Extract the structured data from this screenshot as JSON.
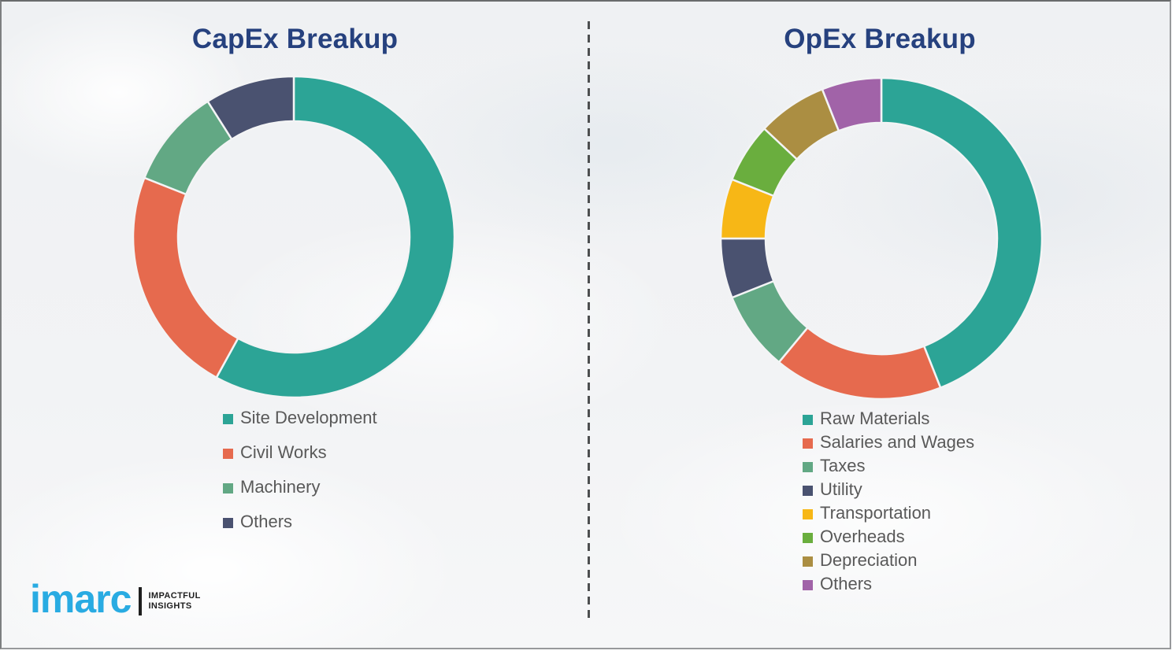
{
  "header": {
    "left_title": "CapEx Breakup",
    "right_title": "OpEx Breakup"
  },
  "chart_data": [
    {
      "type": "pie",
      "variant": "donut",
      "title": "CapEx Breakup",
      "legend_position": "bottom-left",
      "values_are": "percent (estimated from arc angles; no numeric labels shown)",
      "segments": [
        {
          "label": "Site Development",
          "value": 58,
          "color": "#2ca496"
        },
        {
          "label": "Civil Works",
          "value": 23,
          "color": "#e66a4e"
        },
        {
          "label": "Machinery",
          "value": 10,
          "color": "#62a884"
        },
        {
          "label": "Others",
          "value": 9,
          "color": "#4a5270"
        }
      ]
    },
    {
      "type": "pie",
      "variant": "donut",
      "title": "OpEx Breakup",
      "legend_position": "bottom-left",
      "values_are": "percent (estimated from arc angles; no numeric labels shown)",
      "segments": [
        {
          "label": "Raw Materials",
          "value": 44,
          "color": "#2ca496"
        },
        {
          "label": "Salaries and Wages",
          "value": 17,
          "color": "#e66a4e"
        },
        {
          "label": "Taxes",
          "value": 8,
          "color": "#62a884"
        },
        {
          "label": "Utility",
          "value": 6,
          "color": "#4a5270"
        },
        {
          "label": "Transportation",
          "value": 6,
          "color": "#f7b716"
        },
        {
          "label": "Overheads",
          "value": 6,
          "color": "#6aae3e"
        },
        {
          "label": "Depreciation",
          "value": 7,
          "color": "#ab8e42"
        },
        {
          "label": "Others",
          "value": 6,
          "color": "#a163a8"
        }
      ]
    }
  ],
  "logo": {
    "brand": "imarc",
    "tagline_line1": "IMPACTFUL",
    "tagline_line2": "INSIGHTS"
  },
  "style_colors": {
    "title_blue": "#26417e",
    "legend_text": "#595959",
    "background": "#f1f2f4",
    "divider": "#4d4f50",
    "logo_blue": "#29abe2"
  }
}
